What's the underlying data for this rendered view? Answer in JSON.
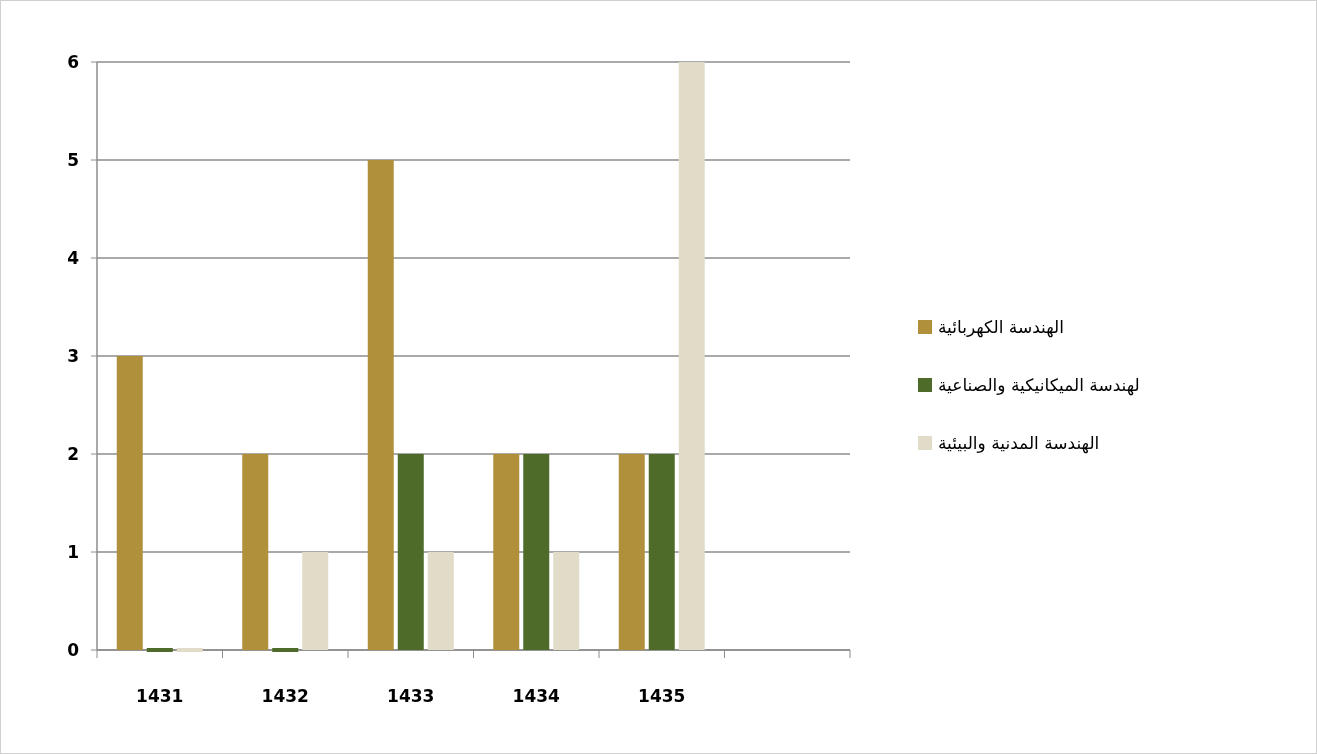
{
  "chart_data": {
    "type": "bar",
    "categories": [
      "1431",
      "1432",
      "1433",
      "1434",
      "1435",
      null
    ],
    "series": [
      {
        "name": "الهندسة الكهربائية",
        "color": "#b0903a",
        "values": [
          3,
          2,
          5,
          2,
          2,
          null
        ]
      },
      {
        "name": "لهندسة الميكانيكية والصناعية",
        "color": "#4f6b2a",
        "values": [
          0,
          0,
          2,
          2,
          2,
          null
        ]
      },
      {
        "name": "الهندسة المدنية والبيئية",
        "color": "#e0dcc8",
        "values": [
          0,
          1,
          1,
          1,
          6,
          null
        ]
      }
    ],
    "ylim": [
      0,
      6
    ],
    "yticks": [
      0,
      1,
      2,
      3,
      4,
      5,
      6
    ],
    "grid": "y",
    "legend": "right"
  }
}
